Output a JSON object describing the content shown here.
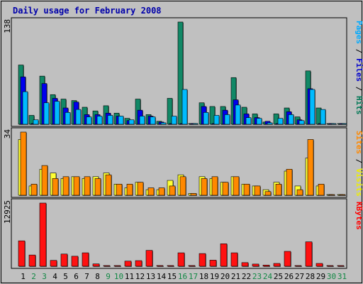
{
  "chart_data": {
    "type": "bar",
    "title": "Daily usage for February 2008",
    "x": [
      "1",
      "2",
      "3",
      "4",
      "5",
      "6",
      "7",
      "8",
      "9",
      "10",
      "11",
      "12",
      "13",
      "14",
      "15",
      "16",
      "17",
      "18",
      "19",
      "20",
      "21",
      "22",
      "23",
      "24",
      "25",
      "26",
      "27",
      "28",
      "29",
      "30",
      "31"
    ],
    "weekend_days": [
      "2",
      "3",
      "9",
      "10",
      "16",
      "17",
      "23",
      "24",
      "30",
      "31"
    ],
    "panels": [
      {
        "name": "hits",
        "ymax_label": "138",
        "ymax": 138,
        "side_label": [
          {
            "text": "Pages",
            "color": "#00aaff"
          },
          {
            "text": " / ",
            "color": "#000000"
          },
          {
            "text": "Files",
            "color": "#0000cc"
          },
          {
            "text": " / ",
            "color": "#000000"
          },
          {
            "text": "Hits",
            "color": "#007755"
          }
        ],
        "series": [
          {
            "name": "Hits",
            "color": "#118866",
            "values": [
              80,
              12,
              65,
              40,
              34,
              32,
              23,
              18,
              25,
              15,
              8,
              34,
              13,
              4,
              35,
              138,
              1,
              29,
              24,
              24,
              63,
              23,
              14,
              3,
              14,
              22,
              10,
              72,
              22,
              0,
              0
            ]
          },
          {
            "name": "Files",
            "color": "#0000ee",
            "values": [
              64,
              0,
              55,
              35,
              22,
              30,
              13,
              13,
              15,
              11,
              5,
              19,
              11,
              3,
              0,
              0,
              0,
              24,
              0,
              19,
              33,
              14,
              9,
              4,
              0,
              17,
              6,
              48,
              0,
              0,
              0
            ]
          },
          {
            "name": "Pages",
            "color": "#00bbff",
            "values": [
              44,
              6,
              29,
              31,
              16,
              20,
              10,
              11,
              12,
              11,
              6,
              11,
              10,
              2,
              11,
              47,
              1,
              16,
              12,
              13,
              26,
              9,
              8,
              2,
              8,
              13,
              5,
              47,
              20,
              0,
              0
            ]
          }
        ]
      },
      {
        "name": "visits",
        "ymax_label": "34",
        "ymax": 34,
        "side_label": [
          {
            "text": "Sites",
            "color": "#ff8800"
          },
          {
            "text": " / ",
            "color": "#000000"
          },
          {
            "text": "Visits",
            "color": "#eeee00"
          }
        ],
        "series": [
          {
            "name": "Visits",
            "color": "#ffff33",
            "values": [
              30,
              5,
              14,
              12,
              9,
              10,
              9,
              10,
              12,
              6,
              4,
              7,
              3,
              3,
              8,
              11,
              1,
              10,
              9,
              7,
              10,
              6,
              5,
              3,
              7,
              13,
              5,
              20,
              5,
              0,
              0
            ]
          },
          {
            "name": "Sites",
            "color": "#ff8800",
            "values": [
              34,
              6,
              16,
              9,
              10,
              10,
              10,
              9,
              11,
              6,
              6,
              7,
              4,
              4,
              5,
              10,
              1,
              9,
              10,
              7,
              10,
              6,
              5,
              2,
              6,
              14,
              3,
              30,
              6,
              0,
              0
            ]
          }
        ]
      },
      {
        "name": "kbytes",
        "ymax_label": "12925",
        "ymax": 12925,
        "side_label": [
          {
            "text": "KBytes",
            "color": "#ff0000"
          }
        ],
        "series": [
          {
            "name": "KBytes",
            "color": "#ff1111",
            "values": [
              5200,
              2300,
              12925,
              1200,
              2500,
              2050,
              2750,
              480,
              0,
              0,
              1050,
              1150,
              3250,
              150,
              0,
              2750,
              150,
              2600,
              1250,
              4600,
              2750,
              750,
              450,
              240,
              580,
              3050,
              40,
              5000,
              580,
              0,
              0
            ]
          }
        ]
      }
    ]
  }
}
